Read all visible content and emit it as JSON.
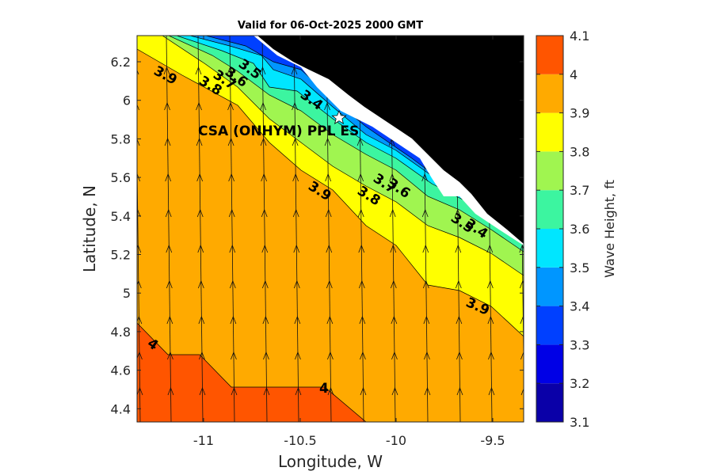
{
  "title": "Valid for 06-Oct-2025 2000 GMT",
  "xlabel": "Longitude, W",
  "ylabel": "Latitude, N",
  "x_ticks": [
    "-11",
    "-10.5",
    "-10",
    "-9.5"
  ],
  "y_ticks": [
    "4.4",
    "4.6",
    "4.8",
    "5",
    "5.2",
    "5.4",
    "5.6",
    "5.8",
    "6",
    "6.2"
  ],
  "colorbar": {
    "label": "Wave Height, ft",
    "ticks": [
      "3.1",
      "3.2",
      "3.3",
      "3.4",
      "3.5",
      "3.6",
      "3.7",
      "3.8",
      "3.9",
      "4",
      "4.1"
    ],
    "colors": [
      "#0a00a8",
      "#0000e6",
      "#0040ff",
      "#0096ff",
      "#00e6ff",
      "#3cf5a0",
      "#a0f550",
      "#ffff00",
      "#ffaa00",
      "#ff5500"
    ]
  },
  "station": {
    "label": "CSA (ONHYM) PPL ES",
    "marker": "star-icon"
  },
  "contour_labels": [
    "3.9",
    "3.8",
    "3.7",
    "3.6",
    "3.5",
    "3.4",
    "3.9",
    "3.8",
    "3.7",
    "3.6",
    "3.5",
    "3.4",
    "3.9",
    "4",
    "4"
  ],
  "colors": {
    "land": "#000000",
    "coast_white": "#ffffff",
    "arrow": "#111111"
  },
  "chart_data": {
    "type": "heatmap",
    "title": "Valid for 06-Oct-2025 2000 GMT",
    "xlabel": "Longitude, W",
    "ylabel": "Latitude, N",
    "xlim": [
      -11.35,
      -9.35
    ],
    "ylim": [
      4.33,
      6.34
    ],
    "color_levels": [
      3.1,
      3.2,
      3.3,
      3.4,
      3.5,
      3.6,
      3.7,
      3.8,
      3.9,
      4.0,
      4.1
    ],
    "colorbar_label": "Wave Height, ft",
    "station": {
      "name": "CSA (ONHYM) PPL ES",
      "lon": -10.28,
      "lat": 5.92
    },
    "vector_field": "wave direction arrows pointing north across the domain"
  }
}
